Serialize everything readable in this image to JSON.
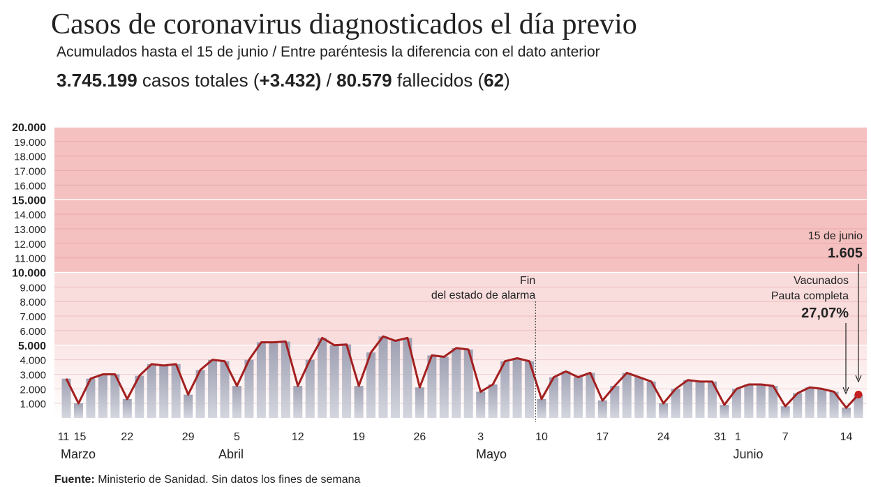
{
  "chart_data": {
    "type": "bar-line",
    "title": "Casos de coronavirus diagnosticados el día previo",
    "subtitle": "Acumulados hasta el 15 de junio / Entre paréntesis la diferencia con el dato anterior",
    "summary": [
      {
        "text": "3.745.199",
        "bold": true
      },
      {
        "text": " casos totales (",
        "bold": false
      },
      {
        "text": "+3.432)",
        "bold": true
      },
      {
        "text": " / ",
        "bold": false
      },
      {
        "text": "80.579",
        "bold": true
      },
      {
        "text": " fallecidos (",
        "bold": false
      },
      {
        "text": "62",
        "bold": true
      },
      {
        "text": ")",
        "bold": false
      }
    ],
    "categories": [
      "11",
      "15",
      null,
      null,
      null,
      "22",
      null,
      null,
      null,
      null,
      "29",
      null,
      null,
      null,
      "5",
      null,
      null,
      null,
      null,
      "12",
      null,
      null,
      null,
      null,
      "19",
      null,
      null,
      null,
      null,
      "26",
      null,
      null,
      null,
      null,
      "3",
      null,
      null,
      null,
      null,
      "10",
      null,
      null,
      null,
      null,
      "17",
      null,
      null,
      null,
      null,
      "24",
      null,
      null,
      null,
      null,
      "31",
      "1",
      null,
      null,
      null,
      "7",
      null,
      null,
      null,
      null,
      "14",
      null
    ],
    "months": [
      "Marzo",
      "Abril",
      "Mayo",
      "Junio"
    ],
    "values": [
      2700,
      1000,
      2700,
      3000,
      3000,
      1300,
      2900,
      3700,
      3600,
      3700,
      1600,
      3300,
      4000,
      3900,
      2200,
      4000,
      5200,
      5200,
      5250,
      2200,
      4000,
      5500,
      5000,
      5050,
      2200,
      4500,
      5600,
      5300,
      5500,
      2100,
      4300,
      4200,
      4800,
      4700,
      1800,
      2300,
      3900,
      4100,
      3900,
      1300,
      2800,
      3200,
      2800,
      3100,
      1200,
      2200,
      3100,
      2800,
      2500,
      1000,
      2000,
      2600,
      2500,
      2500,
      900,
      2000,
      2300,
      2300,
      2200,
      800,
      1700,
      2100,
      2000,
      1800,
      700,
      1605
    ],
    "value_labels": [
      null,
      null,
      null,
      null,
      null,
      null,
      null,
      null,
      null,
      null,
      null,
      null,
      null,
      null,
      null,
      null,
      null,
      null,
      null,
      null,
      null,
      null,
      null,
      null,
      null,
      null,
      null,
      null,
      null,
      null,
      null,
      null,
      null,
      null,
      null,
      null,
      null,
      null,
      null,
      null,
      null,
      null,
      null,
      null,
      null,
      null,
      null,
      null,
      null,
      null,
      null,
      null,
      null,
      null,
      null,
      null,
      null,
      null,
      null,
      null,
      null,
      null,
      null,
      null,
      null,
      "1.605"
    ],
    "last_date": "15 de junio",
    "bar_color": "#9fa2b4",
    "line_color": "#a31f1f",
    "ylim": [
      0,
      20000
    ],
    "yticks": [
      {
        "value": 1000,
        "label": "1.000"
      },
      {
        "value": 2000,
        "label": "2.000"
      },
      {
        "value": 3000,
        "label": "3.000"
      },
      {
        "value": 4000,
        "label": "4.000"
      },
      {
        "value": 5000,
        "label": "5.000"
      },
      {
        "value": 6000,
        "label": "6.000"
      },
      {
        "value": 7000,
        "label": "7.000"
      },
      {
        "value": 8000,
        "label": "8.000"
      },
      {
        "value": 9000,
        "label": "9.000"
      },
      {
        "value": 10000,
        "label": "10.000"
      },
      {
        "value": 11000,
        "label": "11.000"
      },
      {
        "value": 12000,
        "label": "12.000"
      },
      {
        "value": 13000,
        "label": "13.000"
      },
      {
        "value": 14000,
        "label": "14.000"
      },
      {
        "value": 15000,
        "label": "15.000"
      },
      {
        "value": 16000,
        "label": "16.000"
      },
      {
        "value": 17000,
        "label": "17.000"
      },
      {
        "value": 18000,
        "label": "18.000"
      },
      {
        "value": 19000,
        "label": "19.000"
      },
      {
        "value": 20000,
        "label": "20.000"
      }
    ],
    "grid": true,
    "annotation_alarm": [
      "Fin",
      "del estado de alarma"
    ],
    "vaccination": {
      "lines": [
        "Vacunados",
        "Pauta completa"
      ],
      "value": "27,07%"
    },
    "source": [
      {
        "text": "Fuente:",
        "bold": true
      },
      {
        "text": " Ministerio de Sanidad. Sin datos los fines de semana",
        "bold": false
      }
    ]
  }
}
